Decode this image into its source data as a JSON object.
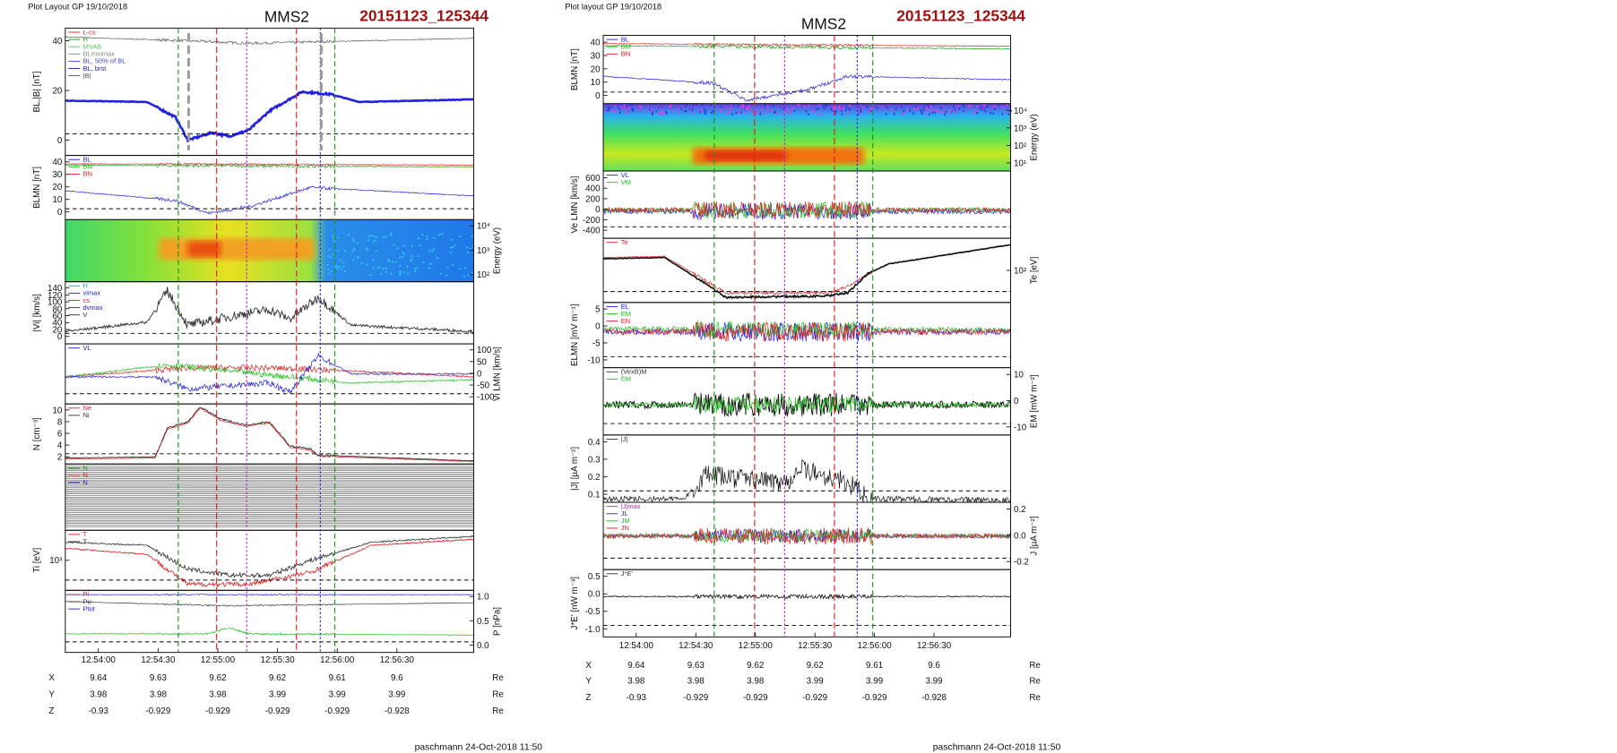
{
  "plots": [
    {
      "header": "Plot Layout GP 19/10/2018",
      "title": "MMS2",
      "run": "20151123_125344",
      "footer": "paschmann 24-Oct-2018 11:50",
      "time_ticks": [
        "12:54:00",
        "12:54:30",
        "12:55:00",
        "12:55:30",
        "12:56:00",
        "12:56:30"
      ],
      "position": [
        {
          "label": "X",
          "values": [
            9.64,
            9.63,
            9.62,
            9.62,
            9.61,
            9.6
          ],
          "unit": "Re"
        },
        {
          "label": "Y",
          "values": [
            3.98,
            3.98,
            3.98,
            3.99,
            3.99,
            3.99
          ],
          "unit": "Re"
        },
        {
          "label": "Z",
          "values": [
            -0.93,
            -0.929,
            -0.929,
            -0.929,
            -0.929,
            -0.928
          ],
          "unit": "Re"
        }
      ],
      "panels": [
        {
          "ylabel": "BL,|B| [nT]",
          "yticks": [
            "0",
            "20",
            "40"
          ],
          "legend": [
            "L-cs",
            "H",
            "MVAB",
            "BLminmax",
            "BL, 50% of BL",
            "BL, brst",
            "|B|"
          ]
        },
        {
          "ylabel": "BLMN [nT]",
          "yticks": [
            "0",
            "10",
            "20",
            "30",
            "40"
          ],
          "legend": [
            "BL",
            "BM",
            "BN"
          ]
        },
        {
          "ylabel": "Energy (eV)",
          "yticks": [
            "10²",
            "10³",
            "10⁴"
          ],
          "legend": []
        },
        {
          "ylabel": "|Vi| [km/s]",
          "yticks": [
            "0",
            "20",
            "40",
            "60",
            "80",
            "100",
            "120",
            "140"
          ],
          "legend": [
            "H",
            "vimax",
            "cs",
            "dvmax",
            "V"
          ]
        },
        {
          "ylabel": "Vi LMN [km/s]",
          "yticks": [
            "-100",
            "-50",
            "0",
            "50",
            "100"
          ],
          "legend": [
            "VL"
          ]
        },
        {
          "ylabel": "N [cm⁻³]",
          "yticks": [
            "2",
            "4",
            "6",
            "8",
            "10"
          ],
          "legend": [
            "Ne",
            "Ni"
          ]
        },
        {
          "yticks": [],
          "legend": [
            "N",
            "N",
            "N"
          ]
        },
        {
          "ylabel": "Ti [eV]",
          "yticks": [
            "10³"
          ],
          "legend": [
            "T",
            "T"
          ]
        },
        {
          "ylabel": "P [nPa]",
          "yticks": [
            "0.0",
            "0.5",
            "1.0"
          ],
          "legend": [
            "Pi",
            "Pe",
            "Ptot"
          ]
        }
      ]
    },
    {
      "header": "Plot layout GP 19/10/2018",
      "title": "MMS2",
      "run": "20151123_125344",
      "footer": "paschmann 24-Oct-2018 11:50",
      "time_ticks": [
        "12:54:00",
        "12:54:30",
        "12:55:00",
        "12:55:30",
        "12:56:00",
        "12:56:30"
      ],
      "position": [
        {
          "label": "X",
          "values": [
            9.64,
            9.63,
            9.62,
            9.62,
            9.61,
            9.6
          ],
          "unit": "Re"
        },
        {
          "label": "Y",
          "values": [
            3.98,
            3.98,
            3.98,
            3.99,
            3.99,
            3.99
          ],
          "unit": "Re"
        },
        {
          "label": "Z",
          "values": [
            -0.93,
            -0.929,
            -0.929,
            -0.929,
            -0.929,
            -0.928
          ],
          "unit": "Re"
        }
      ],
      "panels": [
        {
          "ylabel": "BLMN [nT]",
          "yticks": [
            "0",
            "10",
            "20",
            "30",
            "40"
          ],
          "legend": [
            "BL",
            "BM",
            "BN"
          ]
        },
        {
          "ylabel": "Energy (eV)",
          "yticks": [
            "10¹",
            "10²",
            "10³",
            "10⁴"
          ],
          "legend": []
        },
        {
          "ylabel": "Ve LMN [km/s]",
          "yticks": [
            "-400",
            "-200",
            "0",
            "200",
            "400",
            "600"
          ],
          "legend": [
            "VL",
            "VM"
          ]
        },
        {
          "ylabel": "Te [eV]",
          "yticks": [
            "10²"
          ],
          "legend": [
            "Te"
          ]
        },
        {
          "ylabel": "ELMN [mV m⁻¹]",
          "yticks": [
            "-10",
            "-5",
            "0",
            "5"
          ],
          "legend": [
            "EL",
            "EM",
            "EN"
          ]
        },
        {
          "ylabel": "EM [mW m⁻²]",
          "yticks": [
            "-10",
            "0",
            "10"
          ],
          "legend": [
            "(VexB)M",
            "EM"
          ]
        },
        {
          "ylabel": "|J| [µA m⁻²]",
          "yticks": [
            "0.1",
            "0.2",
            "0.3",
            "0.4"
          ],
          "legend": [
            "|J|"
          ]
        },
        {
          "ylabel": "J [µA m⁻²]",
          "yticks": [
            "-0.2",
            "0.0",
            "0.2"
          ],
          "legend": [
            "|J|max",
            "JL",
            "JM",
            "JN"
          ]
        },
        {
          "ylabel": "J*E' [nW m⁻³]",
          "yticks": [
            "-1.0",
            "-0.5",
            "0.0",
            "0.5"
          ],
          "legend": [
            "J*E'"
          ]
        }
      ]
    }
  ]
}
